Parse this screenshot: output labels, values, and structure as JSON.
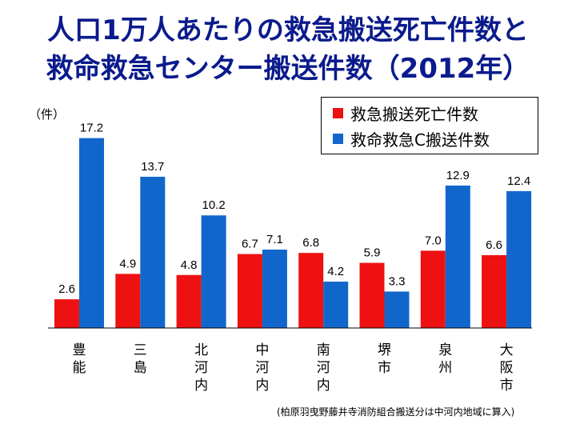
{
  "title": {
    "line1": "人口1万人あたりの救急搬送死亡件数と",
    "line2": "救命救急センター搬送件数（2012年）"
  },
  "unit_label": "（件）",
  "footnote": "(柏原羽曳野藤井寺消防組合搬送分は中河内地域に算入)",
  "colors": {
    "series1": "#ee1111",
    "series2": "#1166cc",
    "title": "#0b1b8c"
  },
  "chart_data": {
    "type": "bar",
    "title": "人口1万人あたりの救急搬送死亡件数と救命救急センター搬送件数（2012年）",
    "ylabel": "（件）",
    "ylim": [
      0,
      18.5
    ],
    "grid": false,
    "legend_position": "top-right",
    "categories": [
      "豊能",
      "三島",
      "北河内",
      "中河内",
      "南河内",
      "堺市",
      "泉州",
      "大阪市"
    ],
    "series": [
      {
        "name": "救急搬送死亡件数",
        "values": [
          2.6,
          4.9,
          4.8,
          6.7,
          6.8,
          5.9,
          7.0,
          6.6
        ]
      },
      {
        "name": "救命救急C搬送件数",
        "values": [
          17.2,
          13.7,
          10.2,
          7.1,
          4.2,
          3.3,
          12.9,
          12.4
        ]
      }
    ]
  }
}
